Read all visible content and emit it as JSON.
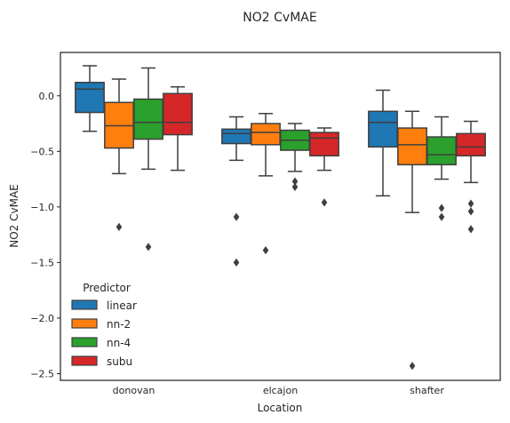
{
  "chart_data": {
    "type": "box",
    "title": "NO2 CvMAE",
    "xlabel": "Location",
    "ylabel": "NO2 CvMAE",
    "ylim": [
      -2.56,
      0.39
    ],
    "yticks": [
      0.0,
      -0.5,
      -1.0,
      -1.5,
      -2.0,
      -2.5
    ],
    "ytick_labels": [
      "0.0",
      "−0.5",
      "−1.0",
      "−1.5",
      "−2.0",
      "−2.5"
    ],
    "categories": [
      "donovan",
      "elcajon",
      "shafter"
    ],
    "grid": false,
    "legend": {
      "title": "Predictor",
      "position": "lower-left"
    },
    "series": [
      {
        "name": "linear",
        "color": "#1f77b4",
        "boxes": [
          {
            "whisker_low": -0.32,
            "q1": -0.15,
            "median": 0.06,
            "q3": 0.12,
            "whisker_high": 0.27,
            "outliers": []
          },
          {
            "whisker_low": -0.58,
            "q1": -0.43,
            "median": -0.34,
            "q3": -0.3,
            "whisker_high": -0.19,
            "outliers": [
              -1.09,
              -1.5
            ]
          },
          {
            "whisker_low": -0.9,
            "q1": -0.46,
            "median": -0.24,
            "q3": -0.14,
            "whisker_high": 0.05,
            "outliers": []
          }
        ]
      },
      {
        "name": "nn-2",
        "color": "#ff7f0e",
        "boxes": [
          {
            "whisker_low": -0.7,
            "q1": -0.47,
            "median": -0.27,
            "q3": -0.06,
            "whisker_high": 0.15,
            "outliers": [
              -1.18
            ]
          },
          {
            "whisker_low": -0.72,
            "q1": -0.44,
            "median": -0.33,
            "q3": -0.25,
            "whisker_high": -0.16,
            "outliers": [
              -1.39
            ]
          },
          {
            "whisker_low": -1.05,
            "q1": -0.62,
            "median": -0.44,
            "q3": -0.29,
            "whisker_high": -0.14,
            "outliers": [
              -2.43
            ]
          }
        ]
      },
      {
        "name": "nn-4",
        "color": "#2ca02c",
        "boxes": [
          {
            "whisker_low": -0.66,
            "q1": -0.39,
            "median": -0.24,
            "q3": -0.03,
            "whisker_high": 0.25,
            "outliers": [
              -1.36
            ]
          },
          {
            "whisker_low": -0.68,
            "q1": -0.49,
            "median": -0.4,
            "q3": -0.31,
            "whisker_high": -0.25,
            "outliers": [
              -0.77,
              -0.82
            ]
          },
          {
            "whisker_low": -0.75,
            "q1": -0.62,
            "median": -0.53,
            "q3": -0.37,
            "whisker_high": -0.19,
            "outliers": [
              -1.01,
              -1.09
            ]
          }
        ]
      },
      {
        "name": "subu",
        "color": "#d62728",
        "boxes": [
          {
            "whisker_low": -0.67,
            "q1": -0.35,
            "median": -0.24,
            "q3": 0.02,
            "whisker_high": 0.08,
            "outliers": []
          },
          {
            "whisker_low": -0.67,
            "q1": -0.54,
            "median": -0.38,
            "q3": -0.33,
            "whisker_high": -0.29,
            "outliers": [
              -0.96
            ]
          },
          {
            "whisker_low": -0.78,
            "q1": -0.54,
            "median": -0.46,
            "q3": -0.34,
            "whisker_high": -0.23,
            "outliers": [
              -0.97,
              -1.04,
              -1.2
            ]
          }
        ]
      }
    ]
  }
}
